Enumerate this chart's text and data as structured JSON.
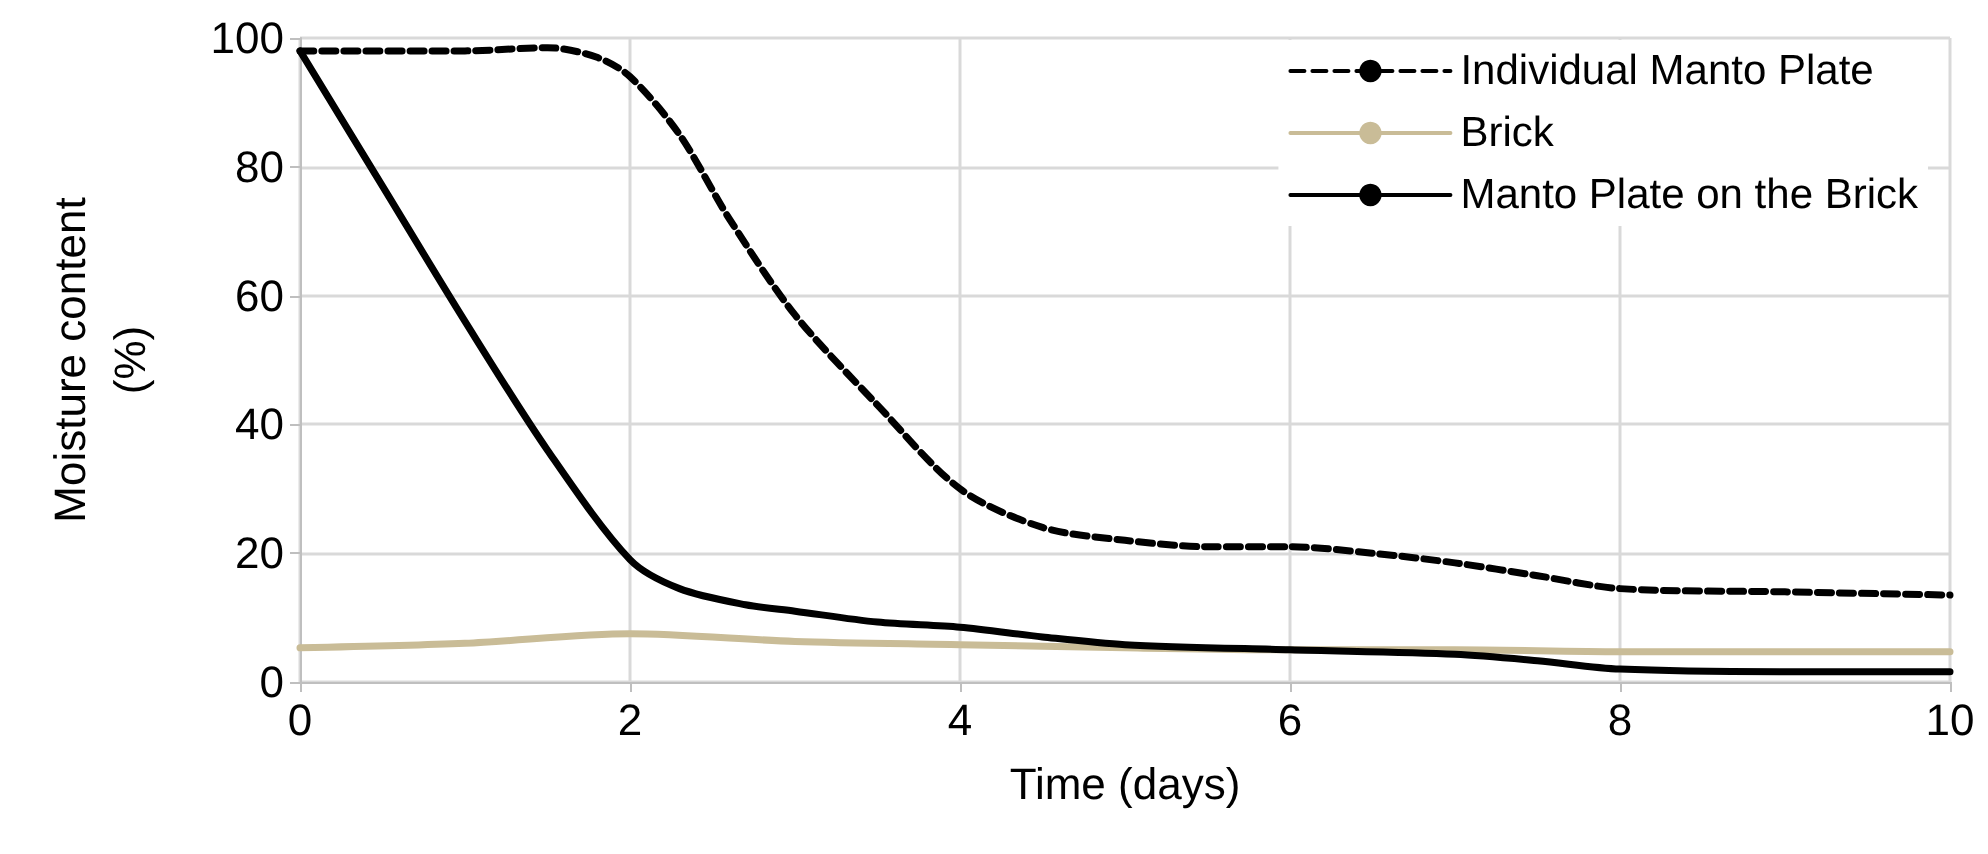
{
  "chart_data": {
    "type": "line",
    "xlabel": "Time (days)",
    "ylabel": "Moisture content\n(%)",
    "xlim": [
      0,
      10
    ],
    "xticks": [
      0,
      2,
      4,
      6,
      8,
      10
    ],
    "ylim": [
      0,
      100
    ],
    "yticks": [
      0,
      20,
      40,
      60,
      80,
      100
    ],
    "grid": true,
    "legend": "top right",
    "marker": "none",
    "series": [
      {
        "name": "Individual Manto Plate",
        "color": "#000000",
        "line_style": "dashed",
        "x": [
          0,
          1,
          1.5,
          1.8,
          2,
          2.3,
          2.6,
          3,
          3.5,
          4,
          4.5,
          5,
          5.5,
          6,
          6.5,
          7,
          7.5,
          8,
          9,
          10
        ],
        "values": [
          98,
          98,
          98.5,
          97,
          94,
          85,
          72,
          57,
          43,
          30,
          24,
          22,
          21,
          21,
          20,
          18.5,
          16.5,
          14.5,
          14,
          13.5
        ]
      },
      {
        "name": "Brick",
        "color": "#c9bc97",
        "line_style": "solid",
        "x": [
          0,
          1,
          2,
          3,
          4,
          5,
          6,
          7,
          8,
          9,
          10
        ],
        "values": [
          5.3,
          6,
          7.5,
          6.3,
          5.8,
          5.3,
          5,
          5,
          4.7,
          4.7,
          4.7
        ]
      },
      {
        "name": "Manto Plate on the Brick",
        "color": "#000000",
        "line_style": "solid",
        "x": [
          0,
          0.5,
          1,
          1.5,
          2,
          2.3,
          2.7,
          3,
          3.5,
          4,
          4.5,
          5,
          6,
          7,
          7.5,
          8,
          9,
          10
        ],
        "values": [
          98,
          77,
          56,
          36,
          19,
          14.5,
          12,
          11,
          9.3,
          8.5,
          7,
          5.8,
          5,
          4.3,
          3.3,
          2,
          1.6,
          1.6
        ]
      }
    ]
  }
}
